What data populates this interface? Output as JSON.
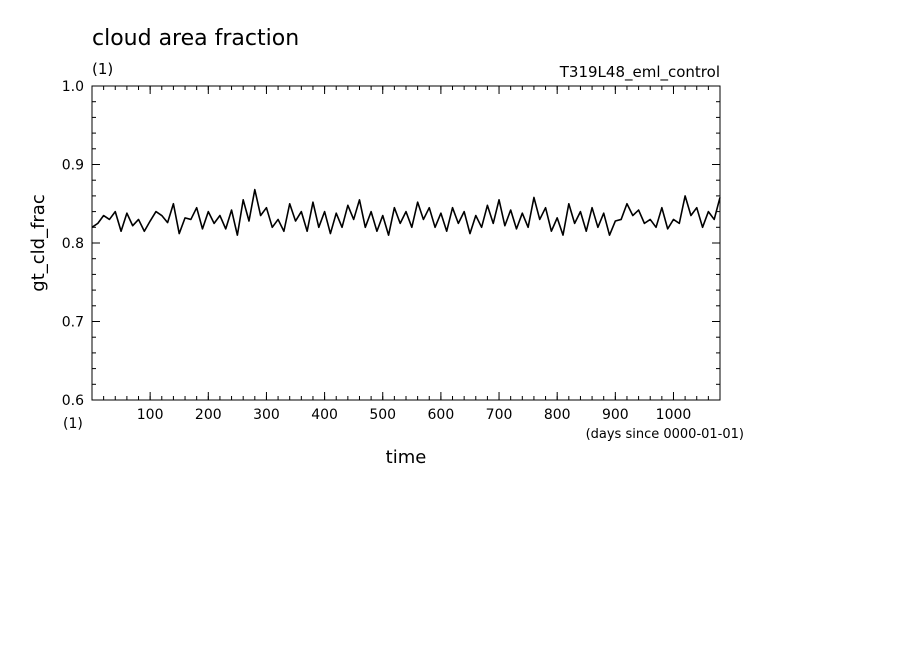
{
  "chart_data": {
    "type": "line",
    "title": "cloud area fraction",
    "title_units": "(1)",
    "experiment": "T319L48_eml_control",
    "xlabel": "time",
    "xlabel_units": "(days since 0000-01-01)",
    "ylabel": "gt_cld_frac",
    "ylabel_units": "(1)",
    "xlim": [
      0,
      1080
    ],
    "ylim": [
      0.6,
      1.0
    ],
    "xticks": [
      100,
      200,
      300,
      400,
      500,
      600,
      700,
      800,
      900,
      1000
    ],
    "xtick_labels": [
      "100",
      "200",
      "300",
      "400",
      "500",
      "600",
      "700",
      "800",
      "900",
      "1000"
    ],
    "yticks": [
      0.6,
      0.7,
      0.8,
      0.9,
      1.0
    ],
    "ytick_labels": [
      "0.6",
      "0.7",
      "0.8",
      "0.9",
      "1.0"
    ],
    "grid": false,
    "color": "#000000",
    "series": [
      {
        "x": [
          0,
          10,
          20,
          30,
          40,
          50,
          60,
          70,
          80,
          90,
          100,
          110,
          120,
          130,
          140,
          150,
          160,
          170,
          180,
          190,
          200,
          210,
          220,
          230,
          240,
          250,
          260,
          270,
          280,
          290,
          300,
          310,
          320,
          330,
          340,
          350,
          360,
          370,
          380,
          390,
          400,
          410,
          420,
          430,
          440,
          450,
          460,
          470,
          480,
          490,
          500,
          510,
          520,
          530,
          540,
          550,
          560,
          570,
          580,
          590,
          600,
          610,
          620,
          630,
          640,
          650,
          660,
          670,
          680,
          690,
          700,
          710,
          720,
          730,
          740,
          750,
          760,
          770,
          780,
          790,
          800,
          810,
          820,
          830,
          840,
          850,
          860,
          870,
          880,
          890,
          900,
          910,
          920,
          930,
          940,
          950,
          960,
          970,
          980,
          990,
          1000,
          1010,
          1020,
          1030,
          1040,
          1050,
          1060,
          1070,
          1080
        ],
        "values": [
          0.82,
          0.825,
          0.835,
          0.83,
          0.84,
          0.815,
          0.838,
          0.822,
          0.83,
          0.815,
          0.828,
          0.84,
          0.835,
          0.826,
          0.85,
          0.812,
          0.832,
          0.83,
          0.845,
          0.818,
          0.84,
          0.825,
          0.835,
          0.818,
          0.842,
          0.81,
          0.855,
          0.828,
          0.868,
          0.835,
          0.845,
          0.82,
          0.83,
          0.815,
          0.85,
          0.828,
          0.84,
          0.815,
          0.852,
          0.82,
          0.84,
          0.812,
          0.838,
          0.82,
          0.848,
          0.83,
          0.855,
          0.82,
          0.84,
          0.815,
          0.835,
          0.81,
          0.845,
          0.825,
          0.84,
          0.82,
          0.852,
          0.83,
          0.845,
          0.82,
          0.838,
          0.815,
          0.845,
          0.825,
          0.84,
          0.812,
          0.835,
          0.82,
          0.848,
          0.825,
          0.855,
          0.822,
          0.842,
          0.818,
          0.838,
          0.82,
          0.858,
          0.83,
          0.845,
          0.815,
          0.832,
          0.81,
          0.85,
          0.825,
          0.84,
          0.815,
          0.845,
          0.82,
          0.838,
          0.81,
          0.828,
          0.83,
          0.85,
          0.835,
          0.842,
          0.825,
          0.83,
          0.82,
          0.845,
          0.818,
          0.83,
          0.825,
          0.86,
          0.835,
          0.845,
          0.82,
          0.84,
          0.83,
          0.858
        ]
      }
    ]
  }
}
